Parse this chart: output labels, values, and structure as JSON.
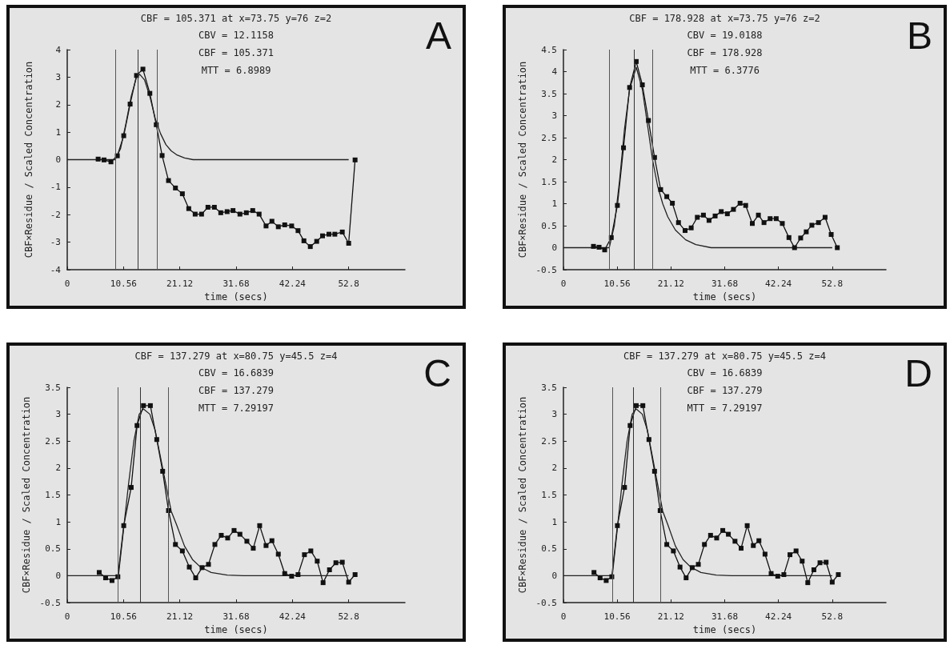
{
  "chart_data": [
    {
      "type": "line",
      "title": "CBF = 105.371 at x=73.75 y=76 z=2",
      "subtitle": "CBV = 12.1158\nCBF = 105.371\nMTT = 6.8989",
      "annotations": [
        "A"
      ],
      "xlabel": "time (secs)",
      "ylabel": "CBF×Residue / Scaled Concentration",
      "xlim": [
        0,
        63.36
      ],
      "xticks": [
        0,
        10.56,
        21.12,
        31.68,
        42.24,
        52.8
      ],
      "ylim": [
        -4,
        4
      ],
      "yticks": [
        -4,
        -3,
        -2,
        -1,
        0,
        1,
        2,
        3,
        4
      ],
      "ref_lines": [
        {
          "axis": "x",
          "value": 9.1,
          "color": "#555555"
        },
        {
          "axis": "x",
          "value": 13.2,
          "color": "#333333"
        },
        {
          "axis": "x",
          "value": 16.8,
          "color": "#555555"
        }
      ],
      "series": [
        {
          "color": "#111111",
          "marker": "square",
          "x": [
            5.8,
            6.9,
            8.2,
            9.4,
            10.6,
            11.8,
            13.0,
            14.2,
            15.5,
            16.7,
            17.8,
            19.0,
            20.3,
            21.6,
            22.8,
            24.0,
            25.2,
            26.4,
            27.6,
            28.8,
            30.0,
            31.1,
            32.4,
            33.6,
            34.8,
            36.0,
            37.3,
            38.4,
            39.6,
            40.8,
            42.1,
            43.3,
            44.4,
            45.6,
            46.8,
            47.9,
            49.1,
            50.2,
            51.6,
            52.8,
            54.0
          ],
          "values": [
            0.02,
            -0.01,
            -0.08,
            0.14,
            0.87,
            2.02,
            3.06,
            3.29,
            2.41,
            1.27,
            0.15,
            -0.76,
            -1.03,
            -1.24,
            -1.78,
            -1.98,
            -1.98,
            -1.73,
            -1.73,
            -1.93,
            -1.89,
            -1.85,
            -1.98,
            -1.93,
            -1.85,
            -1.98,
            -2.41,
            -2.24,
            -2.44,
            -2.37,
            -2.41,
            -2.58,
            -2.95,
            -3.16,
            -2.97,
            -2.77,
            -2.71,
            -2.71,
            -2.63,
            -3.04,
            -0.01
          ]
        },
        {
          "color": "#222222",
          "marker": "none",
          "x": [
            0,
            9.0,
            10.0,
            11.0,
            12.0,
            13.0,
            13.6,
            14.5,
            15.5,
            16.5,
            17.5,
            18.5,
            19.5,
            20.5,
            22.0,
            23.6,
            52.8
          ],
          "values": [
            0,
            0,
            0.4,
            1.3,
            2.3,
            3.0,
            3.1,
            2.9,
            2.3,
            1.5,
            0.95,
            0.55,
            0.32,
            0.18,
            0.06,
            0,
            0
          ]
        }
      ]
    },
    {
      "type": "line",
      "title": "CBF = 178.928 at x=73.75 y=76 z=2",
      "subtitle": "CBV = 19.0188\nCBF = 178.928\nMTT = 6.3776",
      "annotations": [
        "B"
      ],
      "xlabel": "time (secs)",
      "ylabel": "CBF×Residue / Scaled Concentration",
      "xlim": [
        0,
        63.36
      ],
      "xticks": [
        0,
        10.56,
        21.12,
        31.68,
        42.24,
        52.8
      ],
      "ylim": [
        -0.5,
        4.5
      ],
      "yticks": [
        -0.5,
        0,
        0.5,
        1,
        1.5,
        2,
        2.5,
        3,
        3.5,
        4,
        4.5
      ],
      "ref_lines": [
        {
          "axis": "x",
          "value": 9.0,
          "color": "#555555"
        },
        {
          "axis": "x",
          "value": 13.9,
          "color": "#333333"
        },
        {
          "axis": "x",
          "value": 17.5,
          "color": "#555555"
        }
      ],
      "series": [
        {
          "color": "#111111",
          "marker": "square",
          "x": [
            5.9,
            7.0,
            8.1,
            9.4,
            10.6,
            11.8,
            13.0,
            14.3,
            15.5,
            16.7,
            17.9,
            19.1,
            20.3,
            21.4,
            22.6,
            23.9,
            25.1,
            26.3,
            27.5,
            28.6,
            29.8,
            31.0,
            32.2,
            33.4,
            34.7,
            35.8,
            37.1,
            38.3,
            39.4,
            40.6,
            41.8,
            43.0,
            44.3,
            45.4,
            46.6,
            47.7,
            48.8,
            50.1,
            51.4,
            52.6,
            53.8
          ],
          "values": [
            0.03,
            0.01,
            -0.05,
            0.23,
            0.96,
            2.27,
            3.64,
            4.23,
            3.7,
            2.89,
            2.05,
            1.32,
            1.16,
            1.01,
            0.57,
            0.39,
            0.45,
            0.69,
            0.74,
            0.62,
            0.72,
            0.82,
            0.77,
            0.87,
            1.01,
            0.96,
            0.55,
            0.74,
            0.57,
            0.66,
            0.66,
            0.55,
            0.23,
            0,
            0.22,
            0.36,
            0.51,
            0.57,
            0.69,
            0.3,
            0
          ]
        },
        {
          "color": "#222222",
          "marker": "none",
          "x": [
            0,
            9.0,
            10.0,
            11.0,
            12.0,
            13.0,
            14.3,
            15.5,
            16.5,
            17.5,
            18.5,
            19.5,
            20.5,
            22.0,
            24.0,
            26.0,
            29.0,
            52.8
          ],
          "values": [
            0,
            0,
            0.5,
            1.5,
            2.7,
            3.6,
            4.1,
            3.6,
            2.8,
            2.0,
            1.4,
            1.0,
            0.7,
            0.4,
            0.18,
            0.07,
            0,
            0
          ]
        }
      ]
    },
    {
      "type": "line",
      "title": "CBF = 137.279 at x=80.75 y=45.5 z=4",
      "subtitle": "CBV = 16.6839\nCBF = 137.279\nMTT = 7.29197",
      "annotations": [
        "C"
      ],
      "xlabel": "time (secs)",
      "ylabel": "CBF×Residue / Scaled Concentration",
      "xlim": [
        0,
        63.36
      ],
      "xticks": [
        0,
        10.56,
        21.12,
        31.68,
        42.24,
        52.8
      ],
      "ylim": [
        -0.5,
        3.5
      ],
      "yticks": [
        -0.5,
        0,
        0.5,
        1,
        1.5,
        2,
        2.5,
        3,
        3.5
      ],
      "ref_lines": [
        {
          "axis": "x",
          "value": 9.5,
          "color": "#555555"
        },
        {
          "axis": "x",
          "value": 13.7,
          "color": "#333333"
        },
        {
          "axis": "x",
          "value": 19.0,
          "color": "#555555"
        }
      ],
      "series": [
        {
          "color": "#111111",
          "marker": "square",
          "x": [
            6.0,
            7.2,
            8.4,
            9.5,
            10.6,
            12.0,
            13.1,
            14.3,
            15.6,
            16.8,
            17.9,
            19.0,
            20.3,
            21.6,
            22.9,
            24.1,
            25.3,
            26.5,
            27.7,
            28.9,
            30.1,
            31.3,
            32.4,
            33.7,
            34.9,
            36.1,
            37.3,
            38.4,
            39.6,
            40.8,
            42.1,
            43.3,
            44.5,
            45.7,
            46.9,
            48.0,
            49.2,
            50.4,
            51.6,
            52.8,
            54.0
          ],
          "values": [
            0.06,
            -0.04,
            -0.09,
            -0.02,
            0.93,
            1.64,
            2.79,
            3.16,
            3.16,
            2.53,
            1.94,
            1.21,
            0.58,
            0.46,
            0.16,
            -0.04,
            0.15,
            0.21,
            0.58,
            0.75,
            0.7,
            0.84,
            0.77,
            0.64,
            0.51,
            0.93,
            0.56,
            0.65,
            0.4,
            0.04,
            -0.01,
            0.02,
            0.39,
            0.46,
            0.27,
            -0.13,
            0.11,
            0.24,
            0.25,
            -0.12,
            0.02
          ]
        },
        {
          "color": "#222222",
          "marker": "none",
          "x": [
            0,
            9.6,
            10.5,
            11.5,
            12.5,
            13.5,
            14.3,
            15.5,
            16.5,
            17.5,
            18.5,
            19.5,
            20.5,
            22.0,
            23.5,
            25.0,
            27.0,
            30.0,
            33.0,
            52.8
          ],
          "values": [
            0,
            0,
            0.8,
            1.7,
            2.5,
            3.0,
            3.1,
            3.0,
            2.7,
            2.2,
            1.7,
            1.2,
            0.95,
            0.55,
            0.3,
            0.16,
            0.06,
            0.01,
            0,
            0
          ]
        }
      ]
    },
    {
      "type": "line",
      "title": "CBF = 137.279 at x=80.75 y=45.5 z=4",
      "subtitle": "CBV = 16.6839\nCBF = 137.279\nMTT = 7.29197",
      "annotations": [
        "D"
      ],
      "xlabel": "time (secs)",
      "ylabel": "CBF×Residue / Scaled Concentration",
      "xlim": [
        0,
        63.36
      ],
      "xticks": [
        0,
        10.56,
        21.12,
        31.68,
        42.24,
        52.8
      ],
      "ylim": [
        -0.5,
        3.5
      ],
      "yticks": [
        -0.5,
        0,
        0.5,
        1,
        1.5,
        2,
        2.5,
        3,
        3.5
      ],
      "ref_lines": [
        {
          "axis": "x",
          "value": 9.7,
          "color": "#555555"
        },
        {
          "axis": "x",
          "value": 13.7,
          "color": "#333333"
        },
        {
          "axis": "x",
          "value": 19.0,
          "color": "#555555"
        }
      ],
      "series": [
        {
          "color": "#111111",
          "marker": "square",
          "x": [
            6.0,
            7.2,
            8.4,
            9.5,
            10.6,
            12.0,
            13.1,
            14.3,
            15.6,
            16.8,
            17.9,
            19.0,
            20.3,
            21.6,
            22.9,
            24.1,
            25.3,
            26.5,
            27.7,
            28.9,
            30.1,
            31.3,
            32.4,
            33.7,
            34.9,
            36.1,
            37.3,
            38.4,
            39.6,
            40.8,
            42.1,
            43.3,
            44.5,
            45.7,
            46.9,
            48.0,
            49.2,
            50.4,
            51.6,
            52.8,
            54.0
          ],
          "values": [
            0.06,
            -0.04,
            -0.09,
            -0.02,
            0.93,
            1.64,
            2.79,
            3.16,
            3.16,
            2.53,
            1.94,
            1.21,
            0.58,
            0.46,
            0.16,
            -0.04,
            0.15,
            0.21,
            0.58,
            0.75,
            0.7,
            0.84,
            0.77,
            0.64,
            0.51,
            0.93,
            0.56,
            0.65,
            0.4,
            0.04,
            -0.01,
            0.02,
            0.39,
            0.46,
            0.27,
            -0.13,
            0.11,
            0.24,
            0.25,
            -0.12,
            0.02
          ]
        },
        {
          "color": "#222222",
          "marker": "none",
          "x": [
            0,
            9.6,
            10.5,
            11.5,
            12.5,
            13.5,
            14.3,
            15.5,
            16.5,
            17.5,
            18.5,
            19.5,
            20.5,
            22.0,
            23.5,
            25.0,
            27.0,
            30.0,
            33.0,
            52.8
          ],
          "values": [
            0,
            0,
            0.8,
            1.7,
            2.5,
            3.0,
            3.1,
            3.0,
            2.7,
            2.2,
            1.7,
            1.2,
            0.95,
            0.55,
            0.3,
            0.16,
            0.06,
            0.01,
            0,
            0
          ]
        }
      ]
    }
  ]
}
